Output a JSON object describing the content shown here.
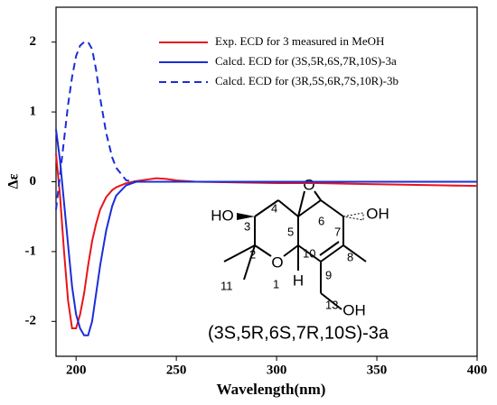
{
  "chart_data": {
    "type": "line",
    "xlabel": "Wavelength(nm)",
    "ylabel": "Δε",
    "x": [
      190,
      192,
      194,
      196,
      198,
      200,
      202,
      204,
      206,
      208,
      210,
      212,
      215,
      218,
      220,
      225,
      230,
      235,
      240,
      245,
      250,
      260,
      280,
      300,
      320,
      340,
      360,
      380,
      400
    ],
    "series": [
      {
        "name": "Exp. ECD for 3 measured in MeOH",
        "color": "#e8141c",
        "dash": false,
        "values": [
          0.4,
          -0.2,
          -1.0,
          -1.7,
          -2.1,
          -2.1,
          -1.9,
          -1.6,
          -1.2,
          -0.85,
          -0.6,
          -0.4,
          -0.22,
          -0.12,
          -0.08,
          -0.02,
          0.01,
          0.03,
          0.05,
          0.04,
          0.02,
          0,
          -0.01,
          -0.02,
          -0.02,
          -0.03,
          -0.04,
          -0.05,
          -0.06
        ]
      },
      {
        "name": "Calcd. ECD for (3S,5R,6S,7R,10S)-3a",
        "color": "#1a2ed6",
        "dash": false,
        "values": [
          0.75,
          0.3,
          -0.3,
          -0.9,
          -1.5,
          -1.9,
          -2.1,
          -2.2,
          -2.2,
          -2.0,
          -1.6,
          -1.2,
          -0.7,
          -0.35,
          -0.2,
          -0.05,
          0,
          0,
          0,
          0,
          0,
          0,
          0,
          0,
          0,
          0,
          0,
          0,
          0
        ]
      },
      {
        "name": "Calcd. ECD for (3R,5S,6R,7S,10R)-3b",
        "color": "#1a2ed6",
        "dash": true,
        "values": [
          -0.4,
          0.1,
          0.6,
          1.1,
          1.5,
          1.8,
          1.95,
          2.0,
          2.0,
          1.9,
          1.6,
          1.2,
          0.7,
          0.35,
          0.2,
          0.02,
          0,
          0,
          0,
          0,
          0,
          0,
          0,
          0,
          0,
          0,
          0,
          0,
          0
        ]
      }
    ],
    "xlim": [
      190,
      400
    ],
    "xticks": [
      200,
      250,
      300,
      350,
      400
    ],
    "ylim": [
      -2.5,
      2.5
    ],
    "yticks": [
      -2,
      -1,
      0,
      1,
      2
    ],
    "structure": {
      "labels": [
        "HO",
        "OH",
        "O",
        "O",
        "H",
        "OH",
        "3",
        "4",
        "5",
        "6",
        "7",
        "2",
        "10",
        "8",
        "9",
        "1",
        "11",
        "13"
      ],
      "caption": "(3S,5R,6S,7R,10S)-3a"
    }
  }
}
